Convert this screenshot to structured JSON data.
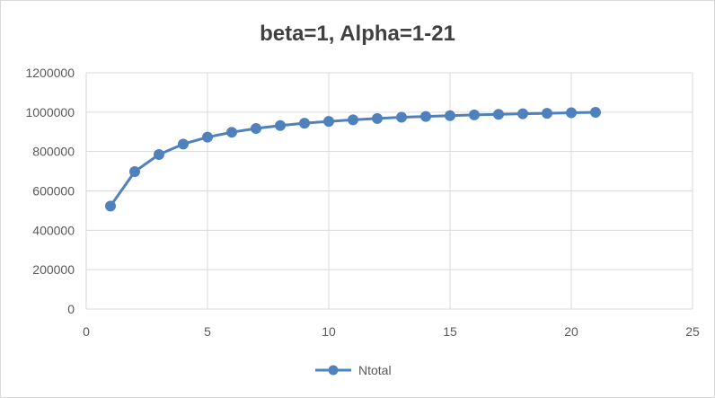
{
  "chart_data": {
    "type": "scatter",
    "title": "beta=1, Alpha=1-21",
    "xlabel": "",
    "ylabel": "",
    "xlim": [
      0,
      25
    ],
    "ylim": [
      0,
      1200000
    ],
    "x_ticks": [
      0,
      5,
      10,
      15,
      20,
      25
    ],
    "y_ticks": [
      0,
      200000,
      400000,
      600000,
      800000,
      1000000,
      1200000
    ],
    "grid": true,
    "legend_position": "bottom",
    "series": [
      {
        "name": "Ntotal",
        "color": "#4f81bd",
        "line": true,
        "markers": true,
        "x": [
          1,
          2,
          3,
          4,
          5,
          6,
          7,
          8,
          9,
          10,
          11,
          12,
          13,
          14,
          15,
          16,
          17,
          18,
          19,
          20,
          21
        ],
        "y": [
          523000,
          698000,
          785000,
          838000,
          873000,
          898000,
          917000,
          932000,
          944000,
          953000,
          961000,
          968000,
          974000,
          978000,
          982000,
          986000,
          989000,
          992000,
          994000,
          997000,
          999000
        ]
      }
    ]
  }
}
